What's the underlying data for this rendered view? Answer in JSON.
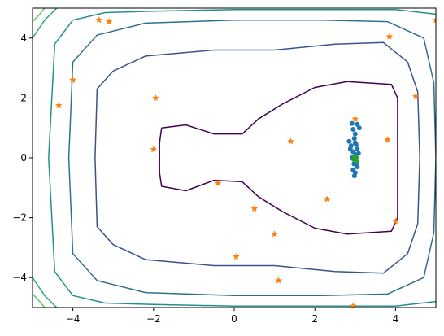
{
  "chart_data": {
    "type": "scatter",
    "title": "",
    "xlabel": "",
    "ylabel": "",
    "xlim": [
      -5,
      5
    ],
    "ylim": [
      -5,
      5
    ],
    "x_ticks": [
      -4,
      -2,
      0,
      2,
      4
    ],
    "y_ticks": [
      -4,
      -2,
      0,
      2,
      4
    ],
    "grid": false,
    "legend": "none",
    "contours": [
      {
        "color": "#440154",
        "level_index": 0,
        "points": [
          [
            -1.8,
            1.0
          ],
          [
            -1.2,
            1.1
          ],
          [
            -0.5,
            0.8
          ],
          [
            0.2,
            0.8
          ],
          [
            0.6,
            1.3
          ],
          [
            1.2,
            1.8
          ],
          [
            2.0,
            2.35
          ],
          [
            2.8,
            2.55
          ],
          [
            3.9,
            2.45
          ],
          [
            4.05,
            2.0
          ],
          [
            4.05,
            -2.0
          ],
          [
            3.9,
            -2.45
          ],
          [
            2.8,
            -2.55
          ],
          [
            2.0,
            -2.35
          ],
          [
            1.2,
            -1.8
          ],
          [
            0.6,
            -1.3
          ],
          [
            0.2,
            -0.8
          ],
          [
            -0.5,
            -0.75
          ],
          [
            -1.2,
            -1.1
          ],
          [
            -1.8,
            -0.95
          ],
          [
            -1.85,
            -0.5
          ],
          [
            -1.85,
            0.5
          ],
          [
            -1.8,
            1.0
          ]
        ]
      },
      {
        "color": "#3b528b",
        "level_index": 1,
        "points": [
          [
            -3.4,
            2.3
          ],
          [
            -3.0,
            2.9
          ],
          [
            -2.2,
            3.4
          ],
          [
            -0.5,
            3.6
          ],
          [
            1.0,
            3.6
          ],
          [
            2.5,
            3.8
          ],
          [
            3.7,
            3.85
          ],
          [
            4.3,
            3.2
          ],
          [
            4.55,
            2.2
          ],
          [
            4.6,
            0.0
          ],
          [
            4.55,
            -2.2
          ],
          [
            4.3,
            -3.2
          ],
          [
            3.7,
            -3.85
          ],
          [
            2.5,
            -3.8
          ],
          [
            1.0,
            -3.6
          ],
          [
            -0.5,
            -3.6
          ],
          [
            -2.2,
            -3.4
          ],
          [
            -3.0,
            -2.9
          ],
          [
            -3.4,
            -2.3
          ],
          [
            -3.45,
            0.0
          ],
          [
            -3.4,
            2.3
          ]
        ]
      },
      {
        "color": "#2c728e",
        "level_index": 2,
        "points": [
          [
            -4.0,
            3.2
          ],
          [
            -3.4,
            4.1
          ],
          [
            -2.2,
            4.5
          ],
          [
            0.0,
            4.6
          ],
          [
            2.2,
            4.6
          ],
          [
            3.8,
            4.55
          ],
          [
            4.7,
            4.0
          ],
          [
            4.95,
            2.5
          ],
          [
            5.0,
            0.0
          ],
          [
            4.95,
            -2.5
          ],
          [
            4.7,
            -4.0
          ],
          [
            3.8,
            -4.55
          ],
          [
            2.2,
            -4.6
          ],
          [
            0.0,
            -4.6
          ],
          [
            -2.2,
            -4.5
          ],
          [
            -3.4,
            -4.1
          ],
          [
            -4.0,
            -3.2
          ],
          [
            -4.1,
            0.0
          ],
          [
            -4.0,
            3.2
          ]
        ]
      },
      {
        "color": "#21908d",
        "level_index": 3,
        "points": [
          [
            -4.45,
            3.8
          ],
          [
            -4.0,
            4.6
          ],
          [
            -3.2,
            4.85
          ],
          [
            -2.0,
            4.9
          ],
          [
            0.0,
            4.95
          ],
          [
            2.0,
            4.95
          ],
          [
            4.0,
            4.95
          ],
          [
            5.0,
            4.8
          ]
        ],
        "points2": [
          [
            5.0,
            -4.8
          ],
          [
            4.0,
            -4.95
          ],
          [
            2.0,
            -4.95
          ],
          [
            0.0,
            -4.95
          ],
          [
            -2.0,
            -4.9
          ],
          [
            -3.2,
            -4.85
          ],
          [
            -4.0,
            -4.6
          ],
          [
            -4.45,
            -3.8
          ],
          [
            -4.6,
            0.0
          ],
          [
            -4.45,
            3.8
          ]
        ]
      },
      {
        "color": "#27ad81",
        "level_index": 4,
        "points": [
          [
            -5.0,
            4.0
          ],
          [
            -4.7,
            4.6
          ],
          [
            -4.4,
            5.0
          ]
        ],
        "points2": [
          [
            -4.4,
            -5.0
          ],
          [
            -4.7,
            -4.6
          ],
          [
            -5.0,
            -4.0
          ]
        ]
      },
      {
        "color": "#5ec962",
        "level_index": 5,
        "points": [
          [
            -5.0,
            4.55
          ],
          [
            -4.85,
            4.75
          ],
          [
            -4.7,
            5.0
          ]
        ],
        "points2": [
          [
            -4.7,
            -5.0
          ],
          [
            -4.85,
            -4.75
          ],
          [
            -5.0,
            -4.55
          ]
        ]
      }
    ],
    "series": [
      {
        "marker": "star",
        "color": "#ff7f0e",
        "points": [
          [
            -3.35,
            4.6
          ],
          [
            -3.1,
            4.55
          ],
          [
            3.85,
            4.05
          ],
          [
            -4.0,
            2.6
          ],
          [
            -4.35,
            1.75
          ],
          [
            -1.95,
            2.0
          ],
          [
            4.5,
            2.05
          ],
          [
            3.0,
            1.3
          ],
          [
            -2.0,
            0.28
          ],
          [
            1.4,
            0.55
          ],
          [
            3.8,
            0.6
          ],
          [
            -0.4,
            -0.85
          ],
          [
            0.5,
            -1.7
          ],
          [
            2.3,
            -1.38
          ],
          [
            4.0,
            -2.12
          ],
          [
            1.0,
            -2.55
          ],
          [
            0.05,
            -3.3
          ],
          [
            1.1,
            -4.1
          ],
          [
            2.95,
            -4.95
          ],
          [
            5.0,
            4.6
          ]
        ]
      },
      {
        "marker": "circle",
        "color": "#1f77b4",
        "points": [
          [
            2.92,
            1.15
          ],
          [
            3.05,
            1.12
          ],
          [
            3.1,
            1.0
          ],
          [
            2.95,
            0.95
          ],
          [
            3.0,
            0.8
          ],
          [
            2.98,
            0.65
          ],
          [
            3.0,
            0.5
          ],
          [
            2.85,
            0.55
          ],
          [
            2.9,
            0.4
          ],
          [
            3.05,
            0.3
          ],
          [
            2.95,
            0.2
          ],
          [
            3.02,
            0.1
          ],
          [
            2.92,
            0.0
          ],
          [
            3.0,
            -0.1
          ],
          [
            2.97,
            -0.2
          ],
          [
            3.05,
            -0.3
          ],
          [
            2.95,
            -0.4
          ],
          [
            3.0,
            -0.5
          ],
          [
            2.98,
            -0.6
          ],
          [
            3.02,
            0.45
          ],
          [
            2.88,
            0.3
          ],
          [
            3.08,
            0.15
          ],
          [
            2.96,
            -0.05
          ],
          [
            3.04,
            -0.15
          ]
        ]
      },
      {
        "marker": "circle",
        "color": "#2ca02c",
        "points": [
          [
            3.0,
            0.05
          ],
          [
            3.03,
            0.0
          ],
          [
            2.97,
            -0.05
          ],
          [
            3.02,
            -0.1
          ],
          [
            2.99,
            0.02
          ]
        ]
      }
    ]
  }
}
